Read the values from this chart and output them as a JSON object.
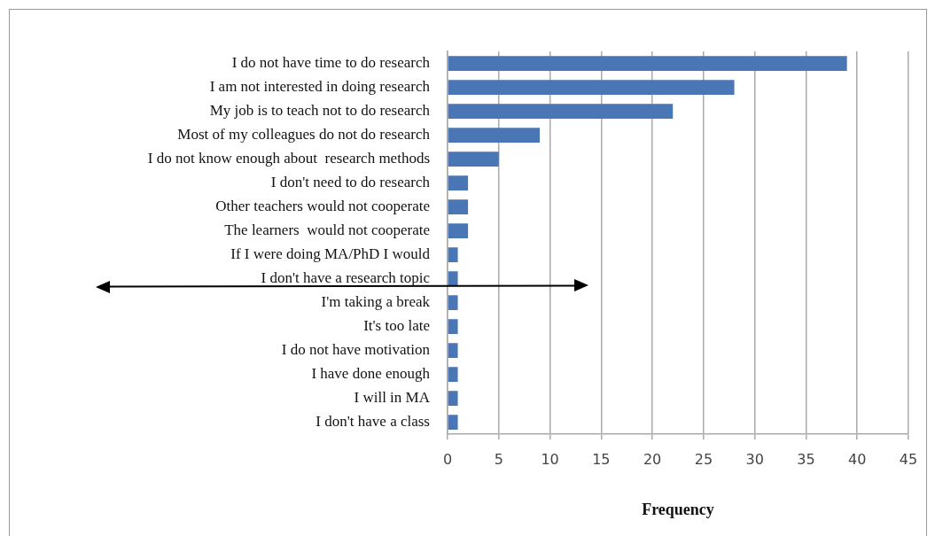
{
  "chart_data": {
    "type": "bar",
    "orientation": "horizontal",
    "xlabel": "Frequency",
    "categories": [
      "I do not have time to do research",
      "I am not interested in doing research",
      "My job is to teach not to do research",
      "Most of my colleagues do not do research",
      "I do not know enough about  research methods",
      "I don't need to do research",
      "Other teachers would not cooperate",
      "The learners  would not cooperate",
      "If I were doing MA/PhD I would",
      "I don't have a research topic",
      "I'm taking a break",
      "It's too late",
      "I do not have motivation",
      "I have done enough",
      "I will in MA",
      "I don't have a class"
    ],
    "values": [
      39,
      28,
      22,
      9,
      5,
      2,
      2,
      2,
      1,
      1,
      1,
      1,
      1,
      1,
      1,
      1
    ],
    "color": "#4a76b5",
    "xlim": [
      0,
      45
    ],
    "xticks": [
      0,
      5,
      10,
      15,
      20,
      25,
      30,
      35,
      40,
      45
    ],
    "grid": "x",
    "legend": false
  }
}
